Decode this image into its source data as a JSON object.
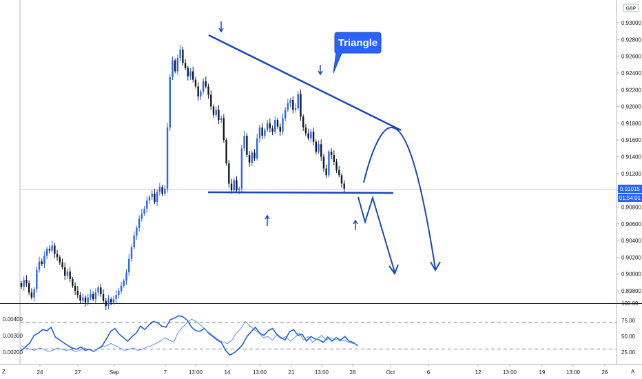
{
  "chart_data": {
    "type": "candlestick",
    "currency": "GBP",
    "colors": {
      "up": "#2962ff",
      "down": "#131722",
      "drawing": "#1848b5",
      "callout_bg": "#2962ff"
    },
    "price_axis": {
      "ticks": [
        "0.93000",
        "0.92800",
        "0.92600",
        "0.92400",
        "0.92200",
        "0.92000",
        "0.91800",
        "0.91600",
        "0.91400",
        "0.91200",
        "0.91000",
        "0.90800",
        "0.90600",
        "0.90400",
        "0.90200",
        "0.90000",
        "0.89800"
      ],
      "ylim": [
        0.8968,
        0.9318
      ]
    },
    "last_price": "0.91015",
    "countdown": "01:54:01",
    "x_ticks": [
      "24",
      "27",
      "Sep",
      "7",
      "13:00",
      "14",
      "13:00",
      "21",
      "13:00",
      "28",
      "Oct",
      "6",
      "12",
      "13:00",
      "19",
      "13:00",
      "26"
    ],
    "annotation": "Triangle",
    "price_series_close": [
      0.8985,
      0.8993,
      0.8989,
      0.8978,
      0.8972,
      0.8982,
      0.9005,
      0.9015,
      0.9012,
      0.9022,
      0.903,
      0.9028,
      0.9034,
      0.9024,
      0.902,
      0.9014,
      0.9008,
      0.8998,
      0.9003,
      0.8994,
      0.8986,
      0.898,
      0.8975,
      0.8968,
      0.8972,
      0.8966,
      0.8972,
      0.8976,
      0.897,
      0.8978,
      0.8984,
      0.8976,
      0.8968,
      0.8962,
      0.897,
      0.8966,
      0.897,
      0.8975,
      0.898,
      0.8986,
      0.8992,
      0.9002,
      0.9018,
      0.9032,
      0.9046,
      0.9055,
      0.9066,
      0.9072,
      0.9078,
      0.9088,
      0.9092,
      0.9096,
      0.9086,
      0.9098,
      0.9104,
      0.9096,
      0.9102,
      0.9175,
      0.9235,
      0.9255,
      0.9242,
      0.9258,
      0.9268,
      0.9252,
      0.9246,
      0.9236,
      0.9242,
      0.9232,
      0.9224,
      0.9212,
      0.9218,
      0.923,
      0.9224,
      0.9214,
      0.92,
      0.919,
      0.9196,
      0.9184,
      0.9186,
      0.916,
      0.9132,
      0.9108,
      0.91,
      0.9112,
      0.91,
      0.9102,
      0.915,
      0.9165,
      0.9142,
      0.9133,
      0.9145,
      0.9138,
      0.9162,
      0.9175,
      0.9165,
      0.9172,
      0.918,
      0.9174,
      0.917,
      0.9184,
      0.9176,
      0.917,
      0.9186,
      0.9196,
      0.9204,
      0.9208,
      0.9196,
      0.9198,
      0.9215,
      0.9188,
      0.9175,
      0.9168,
      0.9162,
      0.917,
      0.9158,
      0.9146,
      0.9155,
      0.914,
      0.9126,
      0.9118,
      0.9146,
      0.9142,
      0.9134,
      0.9124,
      0.9118,
      0.9108,
      0.9102
    ],
    "oscillator": {
      "left_ticks": [
        "0.00400",
        "0.00300",
        "0.00200"
      ],
      "right_ticks": [
        "100.00",
        "75.00",
        "50.00",
        "25.00"
      ],
      "levels": [
        70,
        30
      ],
      "series": [
        {
          "values": [
            22,
            28,
            35,
            48,
            52,
            58,
            56,
            62,
            45,
            40,
            35,
            30,
            26,
            24,
            28,
            22,
            24,
            20,
            25,
            30,
            42,
            55,
            60,
            50,
            44,
            38,
            46,
            52,
            64,
            58,
            66,
            72,
            70,
            64,
            62,
            75,
            78,
            82,
            80,
            74,
            62,
            56,
            55,
            60,
            52,
            46,
            40,
            36,
            22,
            14,
            18,
            24,
            32,
            46,
            54,
            62,
            52,
            48,
            56,
            60,
            50,
            44,
            40,
            54,
            58,
            48,
            50,
            38,
            46,
            42,
            40,
            36,
            45,
            38,
            44,
            40,
            46,
            38,
            36,
            30
          ]
        },
        {
          "values": [
            30,
            26,
            24,
            22,
            26,
            24,
            20,
            22,
            26,
            24,
            22,
            24,
            20,
            22,
            26,
            24,
            20,
            24,
            28,
            30,
            34,
            30,
            26,
            22,
            24,
            26,
            22,
            24,
            28,
            30,
            34,
            38,
            44,
            40,
            36,
            54,
            62,
            70,
            76,
            72,
            66,
            58,
            52,
            46,
            40,
            36,
            34,
            40,
            52,
            60,
            72,
            64,
            58,
            52,
            44,
            46,
            40,
            48,
            42,
            46,
            38,
            44,
            52,
            40,
            46,
            36,
            42,
            48,
            40,
            44,
            42,
            38,
            40,
            36,
            34,
            32
          ]
        }
      ]
    }
  }
}
